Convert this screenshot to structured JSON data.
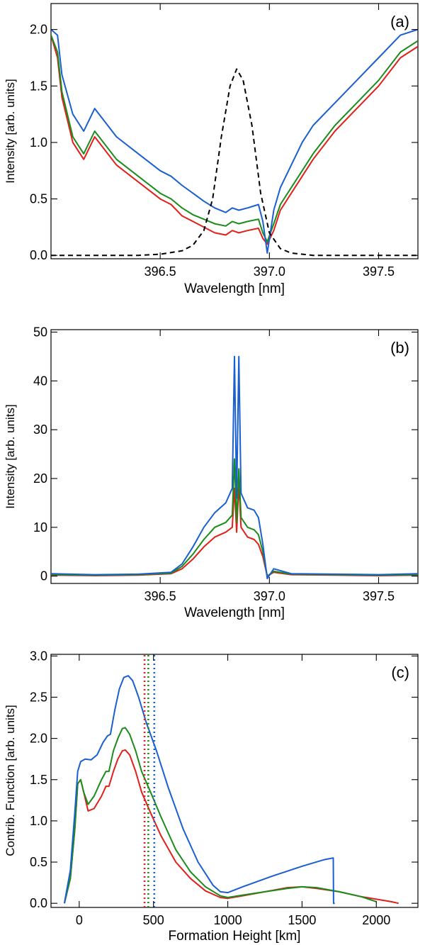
{
  "chart_data": [
    {
      "type": "line",
      "panel_label": "(a)",
      "xlabel": "Wavelength [nm]",
      "ylabel": "Intensity [arb. units]",
      "xlim": [
        396.0,
        397.68
      ],
      "ylim": [
        -0.03,
        2.23
      ],
      "xticks": [
        396.5,
        397.0,
        397.5
      ],
      "xtick_labels": [
        "396.5",
        "397.0",
        "397.5"
      ],
      "yticks": [
        0.0,
        0.5,
        1.0,
        1.5,
        2.0
      ],
      "ytick_labels": [
        "0.0",
        "0.5",
        "1.0",
        "1.5",
        "2.0"
      ],
      "series": [
        {
          "color": "#e0201a",
          "dash": "",
          "x": [
            396.0,
            396.03,
            396.05,
            396.1,
            396.15,
            396.2,
            396.3,
            396.4,
            396.5,
            396.55,
            396.6,
            396.65,
            396.7,
            396.75,
            396.8,
            396.83,
            396.86,
            396.9,
            396.95,
            396.97,
            396.99,
            397.02,
            397.05,
            397.1,
            397.15,
            397.2,
            397.3,
            397.4,
            397.5,
            397.6,
            397.68
          ],
          "y": [
            1.95,
            1.75,
            1.4,
            1.0,
            0.85,
            1.05,
            0.8,
            0.65,
            0.5,
            0.45,
            0.35,
            0.3,
            0.25,
            0.2,
            0.18,
            0.22,
            0.2,
            0.22,
            0.24,
            0.15,
            0.1,
            0.22,
            0.4,
            0.55,
            0.7,
            0.85,
            1.1,
            1.3,
            1.5,
            1.75,
            1.85
          ]
        },
        {
          "color": "#1a8c1a",
          "dash": "",
          "x": [
            396.0,
            396.03,
            396.05,
            396.1,
            396.15,
            396.2,
            396.3,
            396.4,
            396.5,
            396.55,
            396.6,
            396.65,
            396.7,
            396.75,
            396.8,
            396.83,
            396.86,
            396.9,
            396.95,
            396.97,
            396.99,
            397.02,
            397.05,
            397.1,
            397.15,
            397.2,
            397.3,
            397.4,
            397.5,
            397.6,
            397.68
          ],
          "y": [
            1.95,
            1.8,
            1.45,
            1.05,
            0.9,
            1.1,
            0.85,
            0.7,
            0.55,
            0.5,
            0.42,
            0.36,
            0.32,
            0.28,
            0.26,
            0.3,
            0.28,
            0.3,
            0.32,
            0.2,
            0.12,
            0.28,
            0.45,
            0.6,
            0.75,
            0.9,
            1.15,
            1.35,
            1.55,
            1.8,
            1.9
          ]
        },
        {
          "color": "#1a5fd0",
          "dash": "",
          "x": [
            396.0,
            396.03,
            396.05,
            396.1,
            396.15,
            396.2,
            396.3,
            396.4,
            396.5,
            396.55,
            396.6,
            396.65,
            396.7,
            396.75,
            396.8,
            396.83,
            396.86,
            396.9,
            396.95,
            396.97,
            396.99,
            397.02,
            397.05,
            397.1,
            397.15,
            397.2,
            397.3,
            397.4,
            397.5,
            397.6,
            397.68
          ],
          "y": [
            2.0,
            1.95,
            1.6,
            1.25,
            1.1,
            1.3,
            1.05,
            0.9,
            0.75,
            0.7,
            0.62,
            0.55,
            0.48,
            0.42,
            0.38,
            0.42,
            0.4,
            0.42,
            0.45,
            0.3,
            0.02,
            0.4,
            0.6,
            0.8,
            1.0,
            1.15,
            1.35,
            1.55,
            1.75,
            1.95,
            2.0
          ]
        },
        {
          "color": "#000000",
          "dash": "7,5",
          "x": [
            396.0,
            396.2,
            396.4,
            396.5,
            396.6,
            396.65,
            396.7,
            396.74,
            396.78,
            396.82,
            396.85,
            396.88,
            396.92,
            396.96,
            397.0,
            397.05,
            397.1,
            397.2,
            397.4,
            397.68
          ],
          "y": [
            0.0,
            0.0,
            0.0,
            0.01,
            0.04,
            0.09,
            0.22,
            0.5,
            1.05,
            1.5,
            1.65,
            1.55,
            1.15,
            0.55,
            0.2,
            0.06,
            0.02,
            0.0,
            0.0,
            0.0
          ]
        }
      ]
    },
    {
      "type": "line",
      "panel_label": "(b)",
      "xlabel": "Wavelength [nm]",
      "ylabel": "Intensity [arb. units]",
      "xlim": [
        396.0,
        397.68
      ],
      "ylim": [
        -1.5,
        50.5
      ],
      "xticks": [
        396.5,
        397.0,
        397.5
      ],
      "xtick_labels": [
        "396.5",
        "397.0",
        "397.5"
      ],
      "yticks": [
        0,
        10,
        20,
        30,
        40,
        50
      ],
      "ytick_labels": [
        "0",
        "10",
        "20",
        "30",
        "40",
        "50"
      ],
      "series": [
        {
          "color": "#e0201a",
          "dash": "",
          "x": [
            396.0,
            396.2,
            396.4,
            396.55,
            396.6,
            396.65,
            396.7,
            396.75,
            396.8,
            396.83,
            396.84,
            396.85,
            396.86,
            396.87,
            396.9,
            396.93,
            396.95,
            396.97,
            396.99,
            397.02,
            397.1,
            397.3,
            397.5,
            397.68
          ],
          "y": [
            0.2,
            0.1,
            0.2,
            0.5,
            1.5,
            3.5,
            6.0,
            8.0,
            9.0,
            10.0,
            18.0,
            9.0,
            19.0,
            10.0,
            8.0,
            7.5,
            6.5,
            4.0,
            0.0,
            0.8,
            0.3,
            0.2,
            0.1,
            0.2
          ]
        },
        {
          "color": "#1a8c1a",
          "dash": "",
          "x": [
            396.0,
            396.2,
            396.4,
            396.55,
            396.6,
            396.65,
            396.7,
            396.75,
            396.8,
            396.83,
            396.84,
            396.85,
            396.86,
            396.87,
            396.9,
            396.93,
            396.95,
            396.97,
            396.99,
            397.02,
            397.1,
            397.3,
            397.5,
            397.68
          ],
          "y": [
            0.3,
            0.2,
            0.3,
            0.6,
            2.0,
            4.5,
            7.5,
            10.0,
            11.0,
            12.5,
            24.0,
            11.0,
            22.0,
            12.0,
            10.0,
            9.5,
            8.5,
            5.0,
            0.0,
            1.0,
            0.4,
            0.3,
            0.2,
            0.3
          ]
        },
        {
          "color": "#1a5fd0",
          "dash": "",
          "x": [
            396.0,
            396.2,
            396.4,
            396.55,
            396.6,
            396.65,
            396.7,
            396.75,
            396.8,
            396.83,
            396.84,
            396.85,
            396.86,
            396.87,
            396.9,
            396.93,
            396.95,
            396.97,
            396.99,
            397.02,
            397.1,
            397.3,
            397.5,
            397.68
          ],
          "y": [
            0.5,
            0.3,
            0.4,
            0.8,
            2.5,
            6.0,
            10.0,
            13.0,
            15.0,
            18.0,
            45.0,
            16.0,
            45.0,
            17.0,
            14.0,
            13.5,
            12.0,
            6.5,
            -0.5,
            1.5,
            0.5,
            0.4,
            0.3,
            0.5
          ]
        }
      ]
    },
    {
      "type": "line",
      "panel_label": "(c)",
      "xlabel": "Formation Height [km]",
      "ylabel": "Contrib. Function [arb. units]",
      "xlim": [
        -190,
        2280
      ],
      "ylim": [
        -0.05,
        3.02
      ],
      "xticks": [
        0,
        500,
        1000,
        1500,
        2000
      ],
      "xtick_labels": [
        "0",
        "500",
        "1000",
        "1500",
        "2000"
      ],
      "yticks": [
        0.0,
        0.5,
        1.0,
        1.5,
        2.0,
        2.5,
        3.0
      ],
      "ytick_labels": [
        "0.0",
        "0.5",
        "1.0",
        "1.5",
        "2.0",
        "2.5",
        "3.0"
      ],
      "series": [
        {
          "color": "#e0201a",
          "dash": "",
          "x": [
            -100,
            -60,
            -30,
            -10,
            10,
            30,
            60,
            100,
            150,
            180,
            200,
            230,
            260,
            290,
            310,
            340,
            380,
            420,
            480,
            550,
            650,
            750,
            850,
            950,
            1000,
            1100,
            1250,
            1400,
            1500,
            1600,
            1750,
            1900,
            2000,
            2100,
            2150
          ],
          "y": [
            0.0,
            0.3,
            0.9,
            1.45,
            1.5,
            1.35,
            1.12,
            1.15,
            1.3,
            1.42,
            1.42,
            1.6,
            1.75,
            1.85,
            1.86,
            1.8,
            1.6,
            1.35,
            1.1,
            0.82,
            0.5,
            0.3,
            0.15,
            0.07,
            0.06,
            0.09,
            0.14,
            0.19,
            0.2,
            0.18,
            0.14,
            0.08,
            0.05,
            0.02,
            0.0
          ]
        },
        {
          "color": "#1a8c1a",
          "dash": "",
          "x": [
            -100,
            -60,
            -30,
            -10,
            10,
            30,
            60,
            100,
            150,
            180,
            200,
            230,
            260,
            290,
            310,
            340,
            380,
            420,
            480,
            550,
            650,
            750,
            850,
            950,
            1000,
            1100,
            1250,
            1400,
            1500,
            1600,
            1750,
            1900,
            2000
          ],
          "y": [
            0.0,
            0.3,
            0.9,
            1.45,
            1.5,
            1.35,
            1.2,
            1.3,
            1.5,
            1.6,
            1.6,
            1.85,
            2.0,
            2.12,
            2.13,
            2.05,
            1.85,
            1.6,
            1.35,
            1.05,
            0.65,
            0.38,
            0.2,
            0.09,
            0.07,
            0.1,
            0.14,
            0.18,
            0.2,
            0.19,
            0.14,
            0.08,
            0.02
          ]
        },
        {
          "color": "#1a5fd0",
          "dash": "",
          "x": [
            -100,
            -60,
            -30,
            -10,
            10,
            40,
            80,
            120,
            160,
            190,
            210,
            240,
            270,
            300,
            330,
            360,
            400,
            450,
            520,
            600,
            700,
            800,
            900,
            950,
            1000,
            1100,
            1300,
            1500,
            1650,
            1710,
            1712,
            1720
          ],
          "y": [
            0.0,
            0.4,
            1.1,
            1.6,
            1.72,
            1.75,
            1.74,
            1.8,
            1.95,
            2.03,
            2.05,
            2.35,
            2.6,
            2.74,
            2.76,
            2.7,
            2.5,
            2.2,
            1.85,
            1.4,
            0.9,
            0.5,
            0.22,
            0.14,
            0.13,
            0.2,
            0.33,
            0.45,
            0.53,
            0.55,
            0.0,
            0.0
          ]
        },
        {
          "color": "#e0201a",
          "dash": "2,4",
          "x": [
            440,
            440
          ],
          "y": [
            -0.05,
            3.02
          ]
        },
        {
          "color": "#1a8c1a",
          "dash": "2,4",
          "x": [
            465,
            465
          ],
          "y": [
            -0.05,
            3.02
          ]
        },
        {
          "color": "#1a5fd0",
          "dash": "2,4",
          "x": [
            505,
            505
          ],
          "y": [
            -0.05,
            3.02
          ]
        }
      ]
    }
  ]
}
